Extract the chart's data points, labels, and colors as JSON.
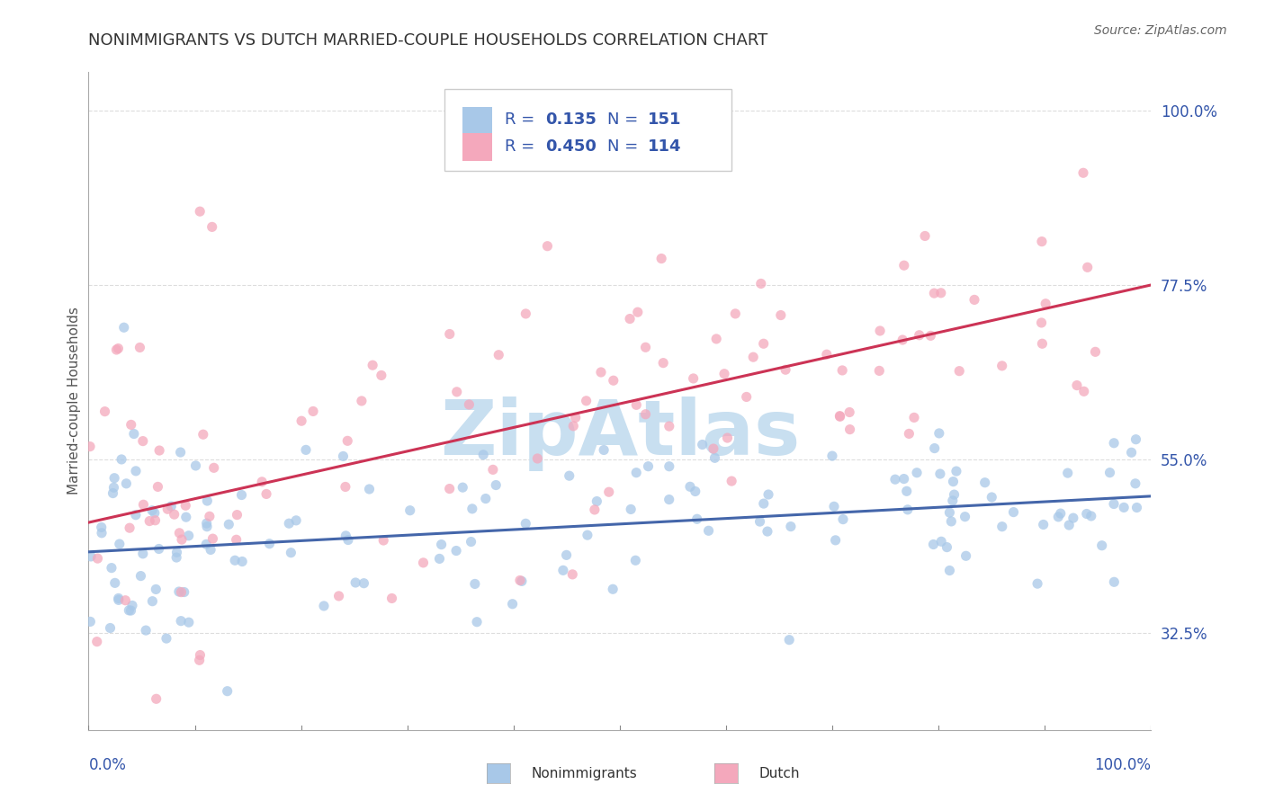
{
  "title": "NONIMMIGRANTS VS DUTCH MARRIED-COUPLE HOUSEHOLDS CORRELATION CHART",
  "source": "Source: ZipAtlas.com",
  "ylabel": "Married-couple Households",
  "ytick_values": [
    0.325,
    0.55,
    0.775,
    1.0
  ],
  "ytick_labels": [
    "32.5%",
    "55.0%",
    "77.5%",
    "100.0%"
  ],
  "xlim": [
    0.0,
    1.0
  ],
  "ylim": [
    0.2,
    1.05
  ],
  "blue_R": 0.135,
  "blue_N": 151,
  "pink_R": 0.45,
  "pink_N": 114,
  "blue_scatter_color": "#a8c8e8",
  "pink_scatter_color": "#f4a8bc",
  "blue_line_color": "#4466aa",
  "pink_line_color": "#cc3355",
  "blue_line_y0": 0.43,
  "blue_line_y1": 0.502,
  "pink_line_y0": 0.468,
  "pink_line_y1": 0.775,
  "legend_text_color": "#3355aa",
  "title_color": "#333333",
  "axis_label_color": "#555555",
  "tick_color": "#3355aa",
  "grid_color": "#dddddd",
  "scatter_alpha": 0.75,
  "scatter_size": 65,
  "watermark_text": "ZipAtlas",
  "watermark_color": "#c8dff0",
  "watermark_fontsize": 62,
  "title_fontsize": 13,
  "label_fontsize": 11,
  "tick_fontsize": 12,
  "source_fontsize": 10,
  "legend_fontsize": 13
}
